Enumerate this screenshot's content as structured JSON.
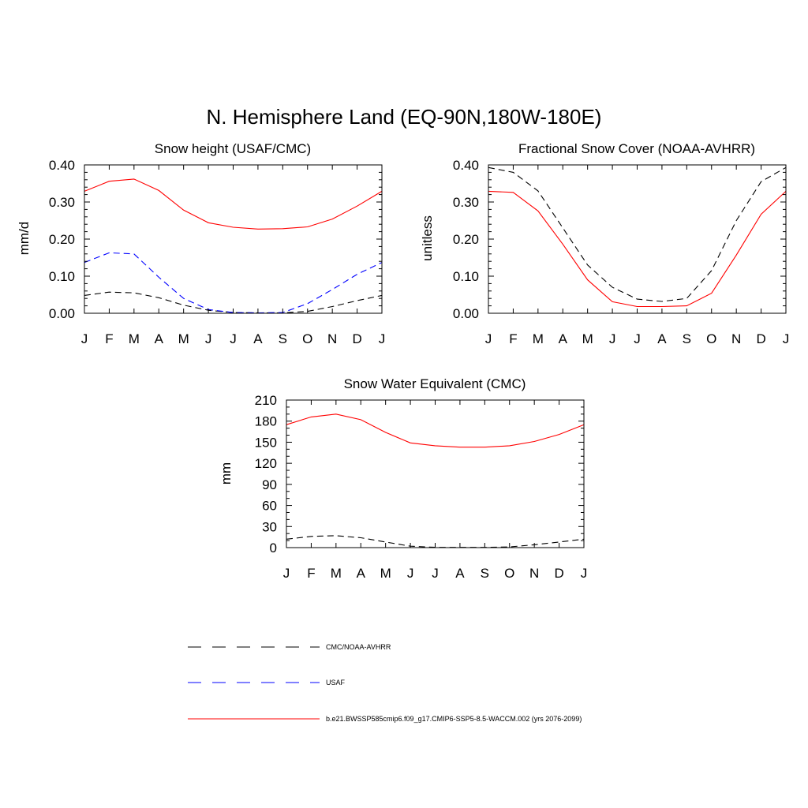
{
  "figure_title": "N. Hemisphere Land (EQ-90N,180W-180E)",
  "colors": {
    "obs": "#000000",
    "usaf": "#0000ff",
    "model": "#ff0000"
  },
  "chart_data": [
    {
      "type": "line",
      "title": "Snow height (USAF/CMC)",
      "xlabel": "",
      "ylabel": "mm/d",
      "ylim": [
        0,
        0.4
      ],
      "yticks": [
        "0.00",
        "0.10",
        "0.20",
        "0.30",
        "0.40"
      ],
      "categories": [
        "J",
        "F",
        "M",
        "A",
        "M",
        "J",
        "J",
        "A",
        "S",
        "O",
        "N",
        "D",
        "J"
      ],
      "series": [
        {
          "name": "CMC/NOAA-AVHRR",
          "style": "dashed",
          "color": "#000000",
          "values": [
            0.048,
            0.057,
            0.055,
            0.042,
            0.022,
            0.008,
            0.002,
            0.001,
            0.001,
            0.005,
            0.018,
            0.034,
            0.048
          ]
        },
        {
          "name": "USAF",
          "style": "dashed",
          "color": "#0000ff",
          "values": [
            0.137,
            0.163,
            0.16,
            0.097,
            0.04,
            0.01,
            0.002,
            0.001,
            0.002,
            0.026,
            0.064,
            0.105,
            0.137
          ]
        },
        {
          "name": "b.e21.BWSSP585cmip6.f09_g17.CMIP6-SSP5-8.5-WACCM.002 (yrs 2076-2099)",
          "style": "solid",
          "color": "#ff0000",
          "values": [
            0.329,
            0.356,
            0.362,
            0.331,
            0.278,
            0.244,
            0.232,
            0.227,
            0.228,
            0.233,
            0.254,
            0.289,
            0.329
          ]
        }
      ]
    },
    {
      "type": "line",
      "title": "Fractional Snow Cover (NOAA-AVHRR)",
      "xlabel": "",
      "ylabel": "unitless",
      "ylim": [
        0,
        0.4
      ],
      "yticks": [
        "0.00",
        "0.10",
        "0.20",
        "0.30",
        "0.40"
      ],
      "categories": [
        "J",
        "F",
        "M",
        "A",
        "M",
        "J",
        "J",
        "A",
        "S",
        "O",
        "N",
        "D",
        "J"
      ],
      "series": [
        {
          "name": "CMC/NOAA-AVHRR",
          "style": "dashed",
          "color": "#000000",
          "values": [
            0.393,
            0.38,
            0.33,
            0.23,
            0.13,
            0.07,
            0.038,
            0.032,
            0.04,
            0.115,
            0.25,
            0.355,
            0.393
          ]
        },
        {
          "name": "b.e21.BWSSP585cmip6.f09_g17.CMIP6-SSP5-8.5-WACCM.002 (yrs 2076-2099)",
          "style": "solid",
          "color": "#ff0000",
          "values": [
            0.329,
            0.326,
            0.276,
            0.186,
            0.09,
            0.031,
            0.018,
            0.018,
            0.02,
            0.054,
            0.157,
            0.267,
            0.329
          ]
        }
      ]
    },
    {
      "type": "line",
      "title": "Snow Water Equivalent (CMC)",
      "xlabel": "",
      "ylabel": "mm",
      "ylim": [
        0,
        210
      ],
      "yticks": [
        "0",
        "30",
        "60",
        "90",
        "120",
        "150",
        "180",
        "210"
      ],
      "categories": [
        "J",
        "F",
        "M",
        "A",
        "M",
        "J",
        "J",
        "A",
        "S",
        "O",
        "N",
        "D",
        "J"
      ],
      "series": [
        {
          "name": "CMC/NOAA-AVHRR",
          "style": "dashed",
          "color": "#000000",
          "values": [
            12,
            16,
            17,
            14,
            8,
            2,
            0.5,
            0.3,
            0.3,
            1,
            4,
            8,
            12
          ]
        },
        {
          "name": "b.e21.BWSSP585cmip6.f09_g17.CMIP6-SSP5-8.5-WACCM.002 (yrs 2076-2099)",
          "style": "solid",
          "color": "#ff0000",
          "values": [
            175,
            186,
            190,
            182,
            164,
            149,
            145,
            143,
            143,
            145,
            151,
            161,
            175
          ]
        }
      ]
    }
  ],
  "legend": [
    {
      "label": "CMC/NOAA-AVHRR",
      "style": "dashed",
      "color": "#000000"
    },
    {
      "label": "USAF",
      "style": "dashed",
      "color": "#0000ff"
    },
    {
      "label": "b.e21.BWSSP585cmip6.f09_g17.CMIP6-SSP5-8.5-WACCM.002 (yrs 2076-2099)",
      "style": "solid",
      "color": "#ff0000"
    }
  ]
}
